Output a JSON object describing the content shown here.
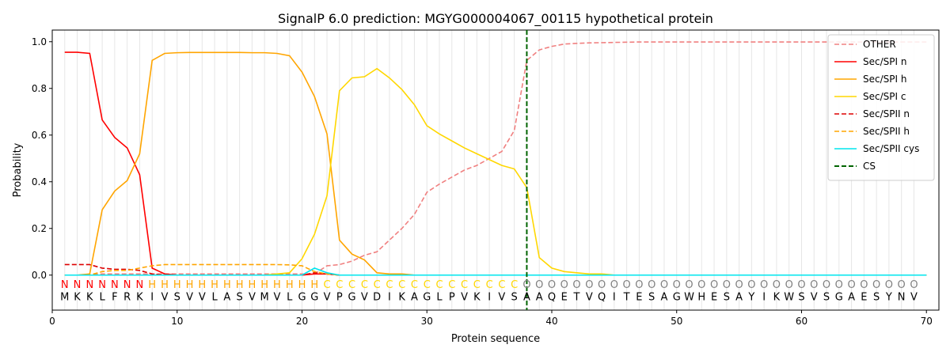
{
  "chart_data": {
    "type": "line",
    "title": "SignalP 6.0 prediction: MGYG000004067_00115 hypothetical protein",
    "xlabel": "Protein sequence",
    "ylabel": "Probability",
    "xlim": [
      0,
      71
    ],
    "ylim": [
      -0.15,
      1.05
    ],
    "xticks": [
      "0",
      "10",
      "20",
      "30",
      "40",
      "50",
      "60",
      "70"
    ],
    "yticks": [
      "0.0",
      "0.2",
      "0.4",
      "0.6",
      "0.8",
      "1.0"
    ],
    "grid": "vertical lines at each residue",
    "legend_position": "top-right",
    "sequence": "MKKLFRKIVSVVLASVMVLGGVPGVDIKAGLPVKIVSAAQETVQITESAGWHESAYIKWSVSGAESYNV",
    "regions": "NNNNNNNHHHHHHHHHHHHHHCCCCCCCCCCCCCCCCOOOOOOOOOOOOOOOOOOOOOOOOOOOOOOOOO",
    "region_colors": {
      "N": "#ff0000",
      "H": "#ffa500",
      "C": "#ffd700",
      "O": "#808080"
    },
    "cleavage_site": 38,
    "series": [
      {
        "name": "OTHER",
        "color": "#f08080",
        "dash": "dashed",
        "values": [
          0,
          0,
          0,
          0.005,
          0.005,
          0.005,
          0.005,
          0.005,
          0.005,
          0.005,
          0.005,
          0.005,
          0.005,
          0.005,
          0.005,
          0.005,
          0.005,
          0.005,
          0.005,
          0.005,
          0.005,
          0.04,
          0.045,
          0.06,
          0.085,
          0.1,
          0.15,
          0.2,
          0.26,
          0.355,
          0.39,
          0.42,
          0.45,
          0.47,
          0.5,
          0.53,
          0.62,
          0.92,
          0.965,
          0.98,
          0.99,
          0.993,
          0.995,
          0.996,
          0.997,
          0.998,
          0.999,
          0.999,
          0.999,
          0.999,
          0.999,
          0.999,
          0.999,
          0.999,
          0.999,
          0.999,
          0.999,
          0.999,
          0.999,
          0.999,
          0.999,
          0.999,
          0.999,
          0.999,
          0.999,
          0.999,
          0.999,
          0.999,
          0.999,
          0.999
        ]
      },
      {
        "name": "Sec/SPI n",
        "color": "#ff0000",
        "dash": "solid",
        "values": [
          0.955,
          0.955,
          0.95,
          0.665,
          0.59,
          0.545,
          0.43,
          0.03,
          0.005,
          0,
          0,
          0,
          0,
          0,
          0,
          0,
          0,
          0,
          0,
          0,
          0.005,
          0.005,
          0,
          0,
          0,
          0,
          0,
          0,
          0,
          0,
          0,
          0,
          0,
          0,
          0,
          0,
          0,
          0,
          0,
          0,
          0,
          0,
          0,
          0,
          0,
          0,
          0,
          0,
          0,
          0,
          0,
          0,
          0,
          0,
          0,
          0,
          0,
          0,
          0,
          0,
          0,
          0,
          0,
          0,
          0,
          0,
          0,
          0,
          0,
          0
        ]
      },
      {
        "name": "Sec/SPI h",
        "color": "#ffa500",
        "dash": "solid",
        "values": [
          0,
          0,
          0.005,
          0.28,
          0.36,
          0.405,
          0.52,
          0.92,
          0.95,
          0.953,
          0.954,
          0.954,
          0.954,
          0.954,
          0.954,
          0.953,
          0.953,
          0.95,
          0.94,
          0.87,
          0.765,
          0.605,
          0.15,
          0.09,
          0.065,
          0.01,
          0.005,
          0.005,
          0,
          0,
          0,
          0,
          0,
          0,
          0,
          0,
          0,
          0,
          0,
          0,
          0,
          0,
          0,
          0,
          0,
          0,
          0,
          0,
          0,
          0,
          0,
          0,
          0,
          0,
          0,
          0,
          0,
          0,
          0,
          0,
          0,
          0,
          0,
          0,
          0,
          0,
          0,
          0,
          0,
          0
        ]
      },
      {
        "name": "Sec/SPI c",
        "color": "#ffd700",
        "dash": "solid",
        "values": [
          0,
          0,
          0,
          0,
          0,
          0,
          0,
          0,
          0,
          0,
          0,
          0,
          0,
          0,
          0,
          0,
          0,
          0.005,
          0.01,
          0.07,
          0.175,
          0.34,
          0.79,
          0.845,
          0.85,
          0.885,
          0.845,
          0.795,
          0.73,
          0.64,
          0.605,
          0.575,
          0.545,
          0.52,
          0.495,
          0.47,
          0.455,
          0.375,
          0.075,
          0.03,
          0.015,
          0.01,
          0.005,
          0.005,
          0,
          0,
          0,
          0,
          0,
          0,
          0,
          0,
          0,
          0,
          0,
          0,
          0,
          0,
          0,
          0,
          0,
          0,
          0,
          0,
          0,
          0,
          0,
          0,
          0,
          0
        ]
      },
      {
        "name": "Sec/SPII n",
        "color": "#dd0000",
        "dash": "dashed",
        "values": [
          0.045,
          0.045,
          0.045,
          0.03,
          0.025,
          0.025,
          0.02,
          0.005,
          0,
          0,
          0,
          0,
          0,
          0,
          0,
          0,
          0,
          0,
          0,
          0,
          0.01,
          0.005,
          0,
          0,
          0,
          0,
          0,
          0,
          0,
          0,
          0,
          0,
          0,
          0,
          0,
          0,
          0,
          0,
          0,
          0,
          0,
          0,
          0,
          0,
          0,
          0,
          0,
          0,
          0,
          0,
          0,
          0,
          0,
          0,
          0,
          0,
          0,
          0,
          0,
          0,
          0,
          0,
          0,
          0,
          0,
          0,
          0,
          0,
          0,
          0
        ]
      },
      {
        "name": "Sec/SPII h",
        "color": "#ffa500",
        "dash": "dashed",
        "values": [
          0,
          0,
          0,
          0.015,
          0.02,
          0.02,
          0.03,
          0.04,
          0.045,
          0.045,
          0.045,
          0.045,
          0.045,
          0.045,
          0.045,
          0.045,
          0.045,
          0.045,
          0.044,
          0.04,
          0.015,
          0.005,
          0,
          0,
          0,
          0,
          0,
          0,
          0,
          0,
          0,
          0,
          0,
          0,
          0,
          0,
          0,
          0,
          0,
          0,
          0,
          0,
          0,
          0,
          0,
          0,
          0,
          0,
          0,
          0,
          0,
          0,
          0,
          0,
          0,
          0,
          0,
          0,
          0,
          0,
          0,
          0,
          0,
          0,
          0,
          0,
          0,
          0,
          0,
          0
        ]
      },
      {
        "name": "Sec/SPII cys",
        "color": "#00e5ee",
        "dash": "solid",
        "values": [
          0,
          0,
          0,
          0,
          0,
          0,
          0,
          0,
          0,
          0,
          0,
          0,
          0,
          0,
          0,
          0,
          0,
          0,
          0,
          0,
          0.03,
          0.01,
          0,
          0,
          0,
          0,
          0,
          0,
          0,
          0,
          0,
          0,
          0,
          0,
          0,
          0,
          0,
          0,
          0,
          0,
          0,
          0,
          0,
          0,
          0,
          0,
          0,
          0,
          0,
          0,
          0,
          0,
          0,
          0,
          0,
          0,
          0,
          0,
          0,
          0,
          0,
          0,
          0,
          0,
          0,
          0,
          0,
          0,
          0,
          0
        ]
      }
    ],
    "cs_legend": {
      "name": "CS",
      "color": "#006400",
      "dash": "dashed"
    }
  }
}
